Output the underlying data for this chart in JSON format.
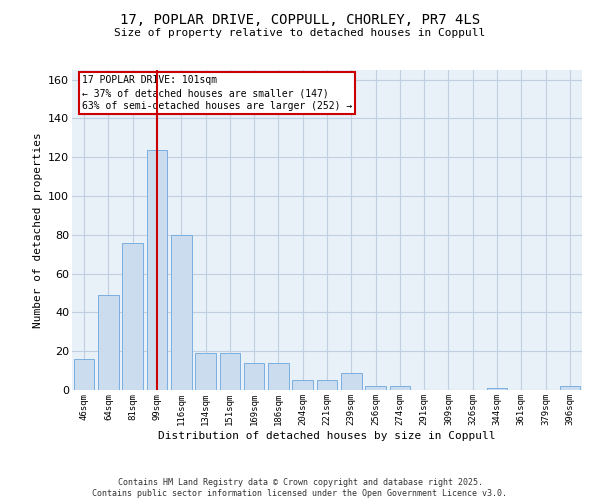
{
  "title_line1": "17, POPLAR DRIVE, COPPULL, CHORLEY, PR7 4LS",
  "title_line2": "Size of property relative to detached houses in Coppull",
  "xlabel": "Distribution of detached houses by size in Coppull",
  "ylabel": "Number of detached properties",
  "categories": [
    "46sqm",
    "64sqm",
    "81sqm",
    "99sqm",
    "116sqm",
    "134sqm",
    "151sqm",
    "169sqm",
    "186sqm",
    "204sqm",
    "221sqm",
    "239sqm",
    "256sqm",
    "274sqm",
    "291sqm",
    "309sqm",
    "326sqm",
    "344sqm",
    "361sqm",
    "379sqm",
    "396sqm"
  ],
  "values": [
    16,
    49,
    76,
    124,
    80,
    19,
    19,
    14,
    14,
    5,
    5,
    9,
    2,
    2,
    0,
    0,
    0,
    1,
    0,
    0,
    2
  ],
  "bar_color": "#ccdcef",
  "bar_edge_color": "#7aafe0",
  "grid_color": "#c0d0e0",
  "background_color": "#e8f0f8",
  "vline_x": 3.0,
  "vline_color": "#cc0000",
  "annotation_title": "17 POPLAR DRIVE: 101sqm",
  "annotation_line1": "← 37% of detached houses are smaller (147)",
  "annotation_line2": "63% of semi-detached houses are larger (252) →",
  "annotation_box_color": "#cc0000",
  "footer_line1": "Contains HM Land Registry data © Crown copyright and database right 2025.",
  "footer_line2": "Contains public sector information licensed under the Open Government Licence v3.0.",
  "ylim": [
    0,
    165
  ],
  "yticks": [
    0,
    20,
    40,
    60,
    80,
    100,
    120,
    140,
    160
  ]
}
